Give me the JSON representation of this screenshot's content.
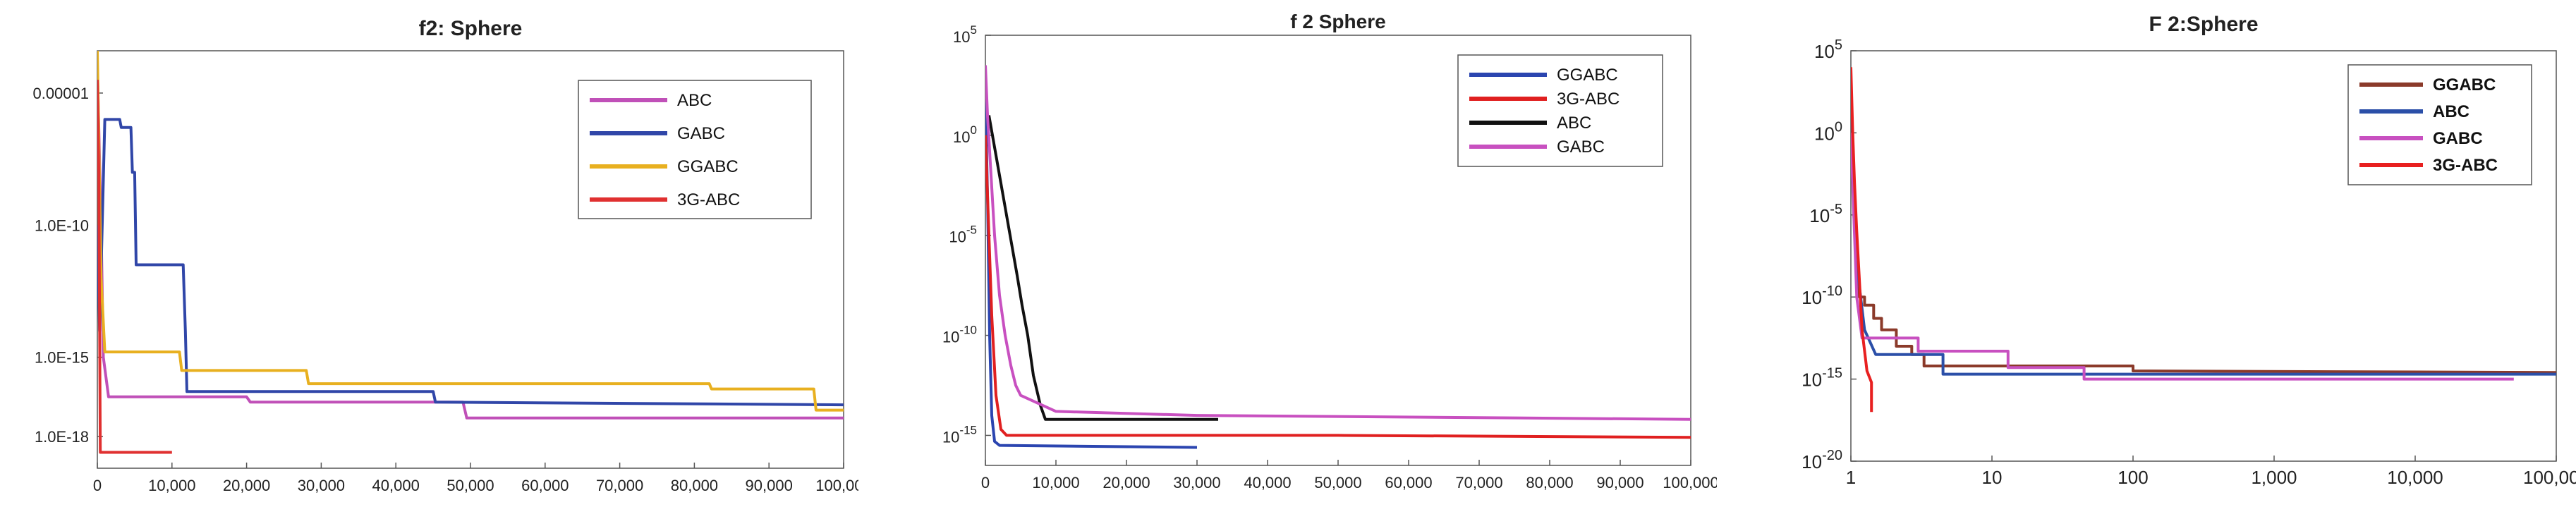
{
  "chart_data": [
    {
      "type": "line",
      "title": "f2: Sphere",
      "xlabel": "",
      "ylabel": "",
      "y_scale": "log",
      "xlim": [
        0,
        100000
      ],
      "ylim_exp": [
        -19.2,
        -3.4
      ],
      "xticks": [
        0,
        10000,
        20000,
        30000,
        40000,
        50000,
        60000,
        70000,
        80000,
        90000,
        100000
      ],
      "xtick_labels": [
        "0",
        "10,000",
        "20,000",
        "30,000",
        "40,000",
        "50,000",
        "60,000",
        "70,000",
        "80,000",
        "90,000",
        "100,000"
      ],
      "yticks_exp": [
        -5,
        -10,
        -15,
        -18
      ],
      "ytick_labels": [
        "0.00001",
        "1.0E-10",
        "1.0E-15",
        "1.0E-18"
      ],
      "grid": false,
      "legend_position": "top-right",
      "series": [
        {
          "name": "ABC",
          "color": "#c050b8",
          "x": [
            0,
            500,
            800,
            1500,
            20000,
            20500,
            49000,
            49500,
            100000
          ],
          "y_exp": [
            -4,
            -10,
            -15,
            -16.5,
            -16.5,
            -16.7,
            -16.7,
            -17.3,
            -17.3
          ]
        },
        {
          "name": "GABC",
          "color": "#3046a8",
          "x": [
            0,
            300,
            1000,
            3000,
            3200,
            4500,
            4700,
            5000,
            5200,
            11500,
            11800,
            12000,
            45000,
            45300,
            100000
          ],
          "y_exp": [
            -10,
            -14,
            -6,
            -6,
            -6.3,
            -6.3,
            -8,
            -8,
            -11.5,
            -11.5,
            -14,
            -16.3,
            -16.3,
            -16.7,
            -16.8
          ]
        },
        {
          "name": "GGABC",
          "color": "#e8b020",
          "x": [
            0,
            500,
            1000,
            11000,
            11300,
            28000,
            28300,
            82000,
            82300,
            96000,
            96300,
            100000
          ],
          "y_exp": [
            -3.4,
            -12,
            -14.8,
            -14.8,
            -15.5,
            -15.5,
            -16,
            -16,
            -16.2,
            -16.2,
            -17,
            -17
          ]
        },
        {
          "name": "3G-ABC",
          "color": "#e03030",
          "x": [
            0,
            200,
            400,
            700,
            10000
          ],
          "y_exp": [
            -4.5,
            -8,
            -18.6,
            -18.6,
            -18.6
          ]
        }
      ]
    },
    {
      "type": "line",
      "title": "f 2 Sphere",
      "xlabel": "",
      "ylabel": "",
      "y_scale": "log",
      "xlim": [
        0,
        100000
      ],
      "ylim_exp": [
        -16.5,
        5
      ],
      "xticks": [
        0,
        10000,
        20000,
        30000,
        40000,
        50000,
        60000,
        70000,
        80000,
        90000,
        100000
      ],
      "xtick_labels": [
        "0",
        "10,000",
        "20,000",
        "30,000",
        "40,000",
        "50,000",
        "60,000",
        "70,000",
        "80,000",
        "90,000",
        "100,000"
      ],
      "yticks_exp": [
        5,
        0,
        -5,
        -10,
        -15
      ],
      "ytick_base": "10",
      "ytick_exponents": [
        "5",
        "0",
        "-5",
        "-10",
        "-15"
      ],
      "grid": false,
      "legend_position": "top-right",
      "series": [
        {
          "name": "GGABC",
          "color": "#2b45b0",
          "x": [
            0,
            300,
            600,
            900,
            1300,
            2000,
            30000
          ],
          "y_exp": [
            2,
            -3,
            -10,
            -14,
            -15.3,
            -15.5,
            -15.6
          ]
        },
        {
          "name": "3G-ABC",
          "color": "#e02020",
          "x": [
            0,
            400,
            900,
            1500,
            2200,
            3000,
            10000,
            50000,
            100000
          ],
          "y_exp": [
            0,
            -4,
            -9,
            -13,
            -14.7,
            -15,
            -15,
            -15,
            -15.1
          ]
        },
        {
          "name": "ABC",
          "color": "#111111",
          "x": [
            500,
            1500,
            2500,
            3500,
            4500,
            5200,
            6000,
            6800,
            7800,
            8500,
            10000,
            33000
          ],
          "y_exp": [
            1,
            -1,
            -3,
            -5,
            -7,
            -8.5,
            -10,
            -12,
            -13.5,
            -14.2,
            -14.2,
            -14.2
          ]
        },
        {
          "name": "GABC",
          "color": "#c850c0",
          "x": [
            0,
            300,
            800,
            1300,
            2000,
            2800,
            3600,
            4300,
            5000,
            10000,
            30000,
            100000
          ],
          "y_exp": [
            3.5,
            1,
            -2,
            -5,
            -8,
            -10,
            -11.5,
            -12.5,
            -13,
            -13.8,
            -14,
            -14.2
          ]
        }
      ]
    },
    {
      "type": "line",
      "title": "F 2:Sphere",
      "xlabel": "",
      "ylabel": "",
      "x_scale": "log",
      "y_scale": "log",
      "xlim": [
        1,
        100000
      ],
      "ylim_exp": [
        -20,
        5
      ],
      "xticks": [
        1,
        10,
        100,
        1000,
        10000,
        100000
      ],
      "xtick_labels": [
        "1",
        "10",
        "100",
        "1,000",
        "10,000",
        "100,000"
      ],
      "yticks_exp": [
        5,
        0,
        -5,
        -10,
        -15,
        -20
      ],
      "ytick_base": "10",
      "ytick_exponents": [
        "5",
        "0",
        "-5",
        "-10",
        "-15",
        "-20"
      ],
      "grid": false,
      "legend_position": "top-right",
      "series": [
        {
          "name": "GGABC",
          "color": "#8b3a2a",
          "x": [
            1,
            1.05,
            1.1,
            1.15,
            1.25,
            1.25,
            1.45,
            1.45,
            1.65,
            1.65,
            2.1,
            2.1,
            2.7,
            2.7,
            3.3,
            3.3,
            100,
            100,
            100000
          ],
          "y_exp": [
            3,
            -5,
            -8,
            -10,
            -10,
            -10.5,
            -10.5,
            -11.3,
            -11.3,
            -12,
            -12,
            -13,
            -13,
            -13.5,
            -13.5,
            -14.2,
            -14.2,
            -14.5,
            -14.6
          ]
        },
        {
          "name": "ABC",
          "color": "#2b4fa8",
          "x": [
            1,
            1.1,
            1.25,
            1.5,
            1.5,
            4.5,
            4.5,
            100000
          ],
          "y_exp": [
            3,
            -8,
            -12,
            -13.5,
            -13.5,
            -13.5,
            -14.7,
            -14.7
          ]
        },
        {
          "name": "GABC",
          "color": "#c850c0",
          "x": [
            1,
            1.1,
            1.2,
            1.2,
            3,
            3,
            13,
            13,
            45,
            45,
            50000
          ],
          "y_exp": [
            0,
            -10,
            -12.5,
            -12.5,
            -12.5,
            -13.3,
            -13.3,
            -14.3,
            -14.3,
            -15,
            -15
          ]
        },
        {
          "name": "3G-ABC",
          "color": "#e82020",
          "x": [
            1,
            1.03,
            1.06,
            1.1,
            1.15,
            1.2,
            1.3,
            1.4,
            1.4
          ],
          "y_exp": [
            4,
            0,
            -3,
            -6,
            -9,
            -12,
            -14.5,
            -15.2,
            -17
          ]
        }
      ]
    }
  ]
}
